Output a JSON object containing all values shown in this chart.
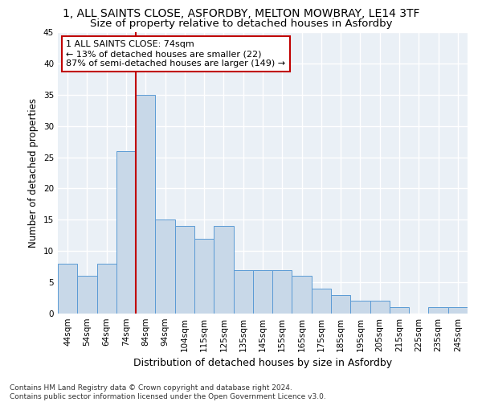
{
  "title1": "1, ALL SAINTS CLOSE, ASFORDBY, MELTON MOWBRAY, LE14 3TF",
  "title2": "Size of property relative to detached houses in Asfordby",
  "xlabel": "Distribution of detached houses by size in Asfordby",
  "ylabel": "Number of detached properties",
  "footnote": "Contains HM Land Registry data © Crown copyright and database right 2024.\nContains public sector information licensed under the Open Government Licence v3.0.",
  "categories": [
    "44sqm",
    "54sqm",
    "64sqm",
    "74sqm",
    "84sqm",
    "94sqm",
    "104sqm",
    "115sqm",
    "125sqm",
    "135sqm",
    "145sqm",
    "155sqm",
    "165sqm",
    "175sqm",
    "185sqm",
    "195sqm",
    "205sqm",
    "215sqm",
    "225sqm",
    "235sqm",
    "245sqm"
  ],
  "values": [
    8,
    6,
    8,
    26,
    35,
    15,
    14,
    12,
    14,
    7,
    7,
    7,
    6,
    4,
    3,
    2,
    2,
    1,
    0,
    1,
    1
  ],
  "bar_color": "#c8d8e8",
  "bar_edge_color": "#5b9bd5",
  "subject_line_color": "#c00000",
  "annotation_text": "1 ALL SAINTS CLOSE: 74sqm\n← 13% of detached houses are smaller (22)\n87% of semi-detached houses are larger (149) →",
  "annotation_box_color": "#c00000",
  "ylim": [
    0,
    45
  ],
  "yticks": [
    0,
    5,
    10,
    15,
    20,
    25,
    30,
    35,
    40,
    45
  ],
  "background_color": "#eaf0f6",
  "grid_color": "#ffffff",
  "title1_fontsize": 10,
  "title2_fontsize": 9.5,
  "xlabel_fontsize": 9,
  "ylabel_fontsize": 8.5,
  "tick_fontsize": 7.5,
  "annot_fontsize": 8,
  "footnote_fontsize": 6.5
}
